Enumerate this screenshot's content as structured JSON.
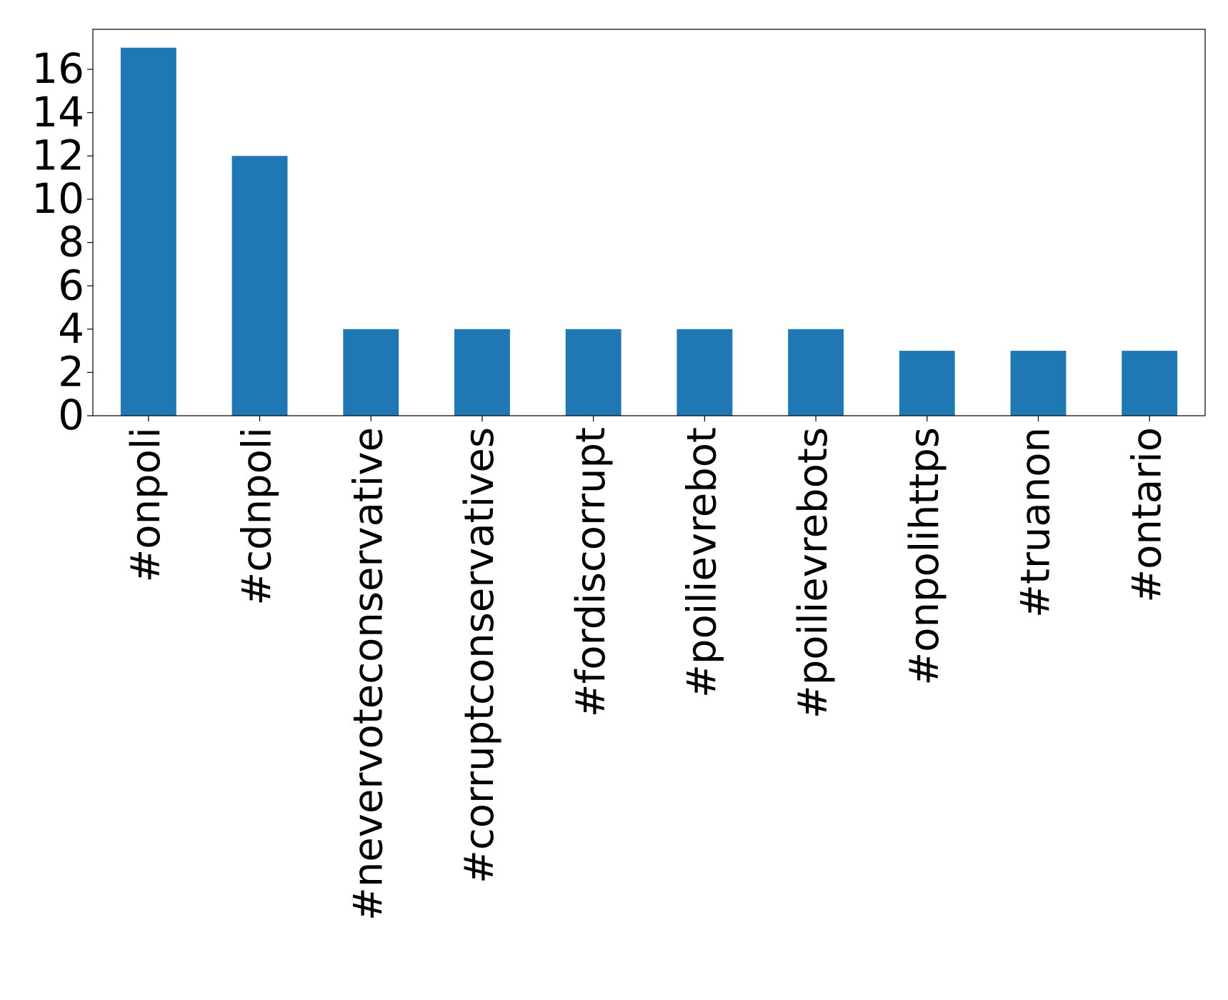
{
  "chart_data": {
    "type": "bar",
    "categories": [
      "#onpoli",
      "#cdnpoli",
      "#nevervoteconservative",
      "#corruptconservatives",
      "#fordiscorrupt",
      "#poilievrebot",
      "#poilievrebots",
      "#onpolihttps",
      "#truanon",
      "#ontario"
    ],
    "values": [
      17,
      12,
      4,
      4,
      4,
      4,
      4,
      3,
      3,
      3
    ],
    "color": "#1f77b4",
    "ylim": [
      0,
      17.85
    ],
    "yticks": [
      0,
      2,
      4,
      6,
      8,
      10,
      12,
      14,
      16
    ]
  }
}
